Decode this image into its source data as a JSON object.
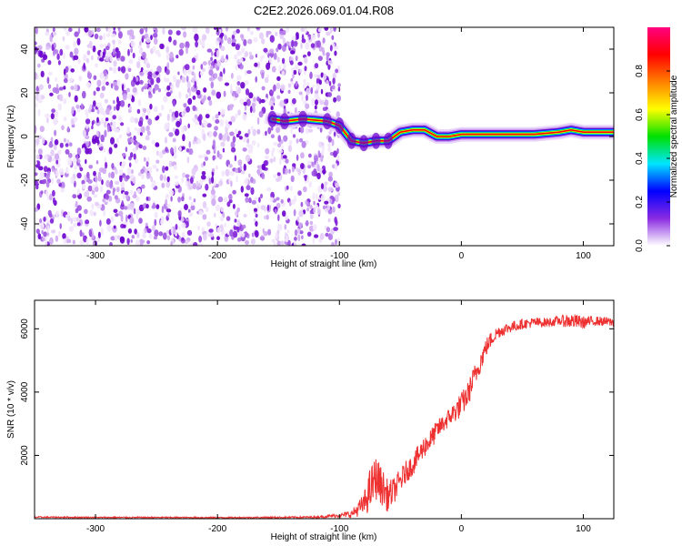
{
  "title": "C2E2.2026.069.01.04.R08",
  "chart_data": [
    {
      "type": "heatmap",
      "name": "spectrogram",
      "xlabel": "Height of straight line (km)",
      "ylabel": "Frequency (Hz)",
      "xlim": [
        -350,
        125
      ],
      "ylim": [
        -50,
        50
      ],
      "xticks": [
        -300,
        -200,
        -100,
        0,
        100
      ],
      "yticks": [
        -40,
        -20,
        0,
        20,
        40
      ],
      "noise_region_x": [
        -350,
        -100
      ],
      "signal_trace": [
        {
          "x": -155,
          "f": 8
        },
        {
          "x": -145,
          "f": 7
        },
        {
          "x": -130,
          "f": 8
        },
        {
          "x": -110,
          "f": 7
        },
        {
          "x": -100,
          "f": 5
        },
        {
          "x": -90,
          "f": -2
        },
        {
          "x": -80,
          "f": -3
        },
        {
          "x": -70,
          "f": -2
        },
        {
          "x": -60,
          "f": -2
        },
        {
          "x": -50,
          "f": 2
        },
        {
          "x": -40,
          "f": 3
        },
        {
          "x": -30,
          "f": 3
        },
        {
          "x": -20,
          "f": 0
        },
        {
          "x": -10,
          "f": 0
        },
        {
          "x": 0,
          "f": 1
        },
        {
          "x": 20,
          "f": 1
        },
        {
          "x": 40,
          "f": 1
        },
        {
          "x": 60,
          "f": 1
        },
        {
          "x": 80,
          "f": 2
        },
        {
          "x": 90,
          "f": 3
        },
        {
          "x": 100,
          "f": 2
        },
        {
          "x": 125,
          "f": 2
        }
      ],
      "colorbar": {
        "label": "Normalized spectral amplitude",
        "range": [
          0,
          1
        ],
        "ticks": [
          "0.0",
          "0.2",
          "0.4",
          "0.6",
          "0.8"
        ],
        "colors": [
          "#ffffff",
          "#8a2be2",
          "#0000ff",
          "#00e5ff",
          "#00e000",
          "#ffff00",
          "#ff8000",
          "#ff0000",
          "#ff0080"
        ]
      }
    },
    {
      "type": "line",
      "name": "snr",
      "xlabel": "Height of straight line (km)",
      "ylabel": "SNR (10 * v/v)",
      "xlim": [
        -350,
        125
      ],
      "ylim": [
        0,
        6900
      ],
      "xticks": [
        -300,
        -200,
        -100,
        0,
        100
      ],
      "yticks": [
        2000,
        4000,
        6000
      ],
      "series": [
        {
          "name": "SNR",
          "color": "#ee3030",
          "x": [
            -350,
            -300,
            -250,
            -200,
            -150,
            -120,
            -100,
            -90,
            -80,
            -75,
            -70,
            -65,
            -60,
            -55,
            -50,
            -45,
            -40,
            -35,
            -30,
            -25,
            -20,
            -15,
            -10,
            -5,
            0,
            5,
            10,
            15,
            20,
            25,
            30,
            40,
            50,
            60,
            70,
            80,
            90,
            100,
            110,
            125
          ],
          "values": [
            50,
            40,
            40,
            35,
            40,
            50,
            100,
            150,
            450,
            900,
            1300,
            1000,
            700,
            900,
            1200,
            1500,
            1700,
            2000,
            2300,
            2500,
            2800,
            3000,
            3200,
            3400,
            3600,
            3900,
            4400,
            4900,
            5400,
            5700,
            5900,
            6050,
            6150,
            6200,
            6200,
            6250,
            6250,
            6200,
            6250,
            6200
          ],
          "noise": [
            20,
            20,
            20,
            20,
            25,
            30,
            60,
            120,
            350,
            700,
            700,
            600,
            500,
            400,
            400,
            350,
            350,
            350,
            350,
            350,
            300,
            300,
            300,
            350,
            400,
            400,
            400,
            350,
            300,
            250,
            200,
            180,
            160,
            160,
            150,
            150,
            250,
            200,
            150,
            150
          ]
        }
      ]
    }
  ]
}
